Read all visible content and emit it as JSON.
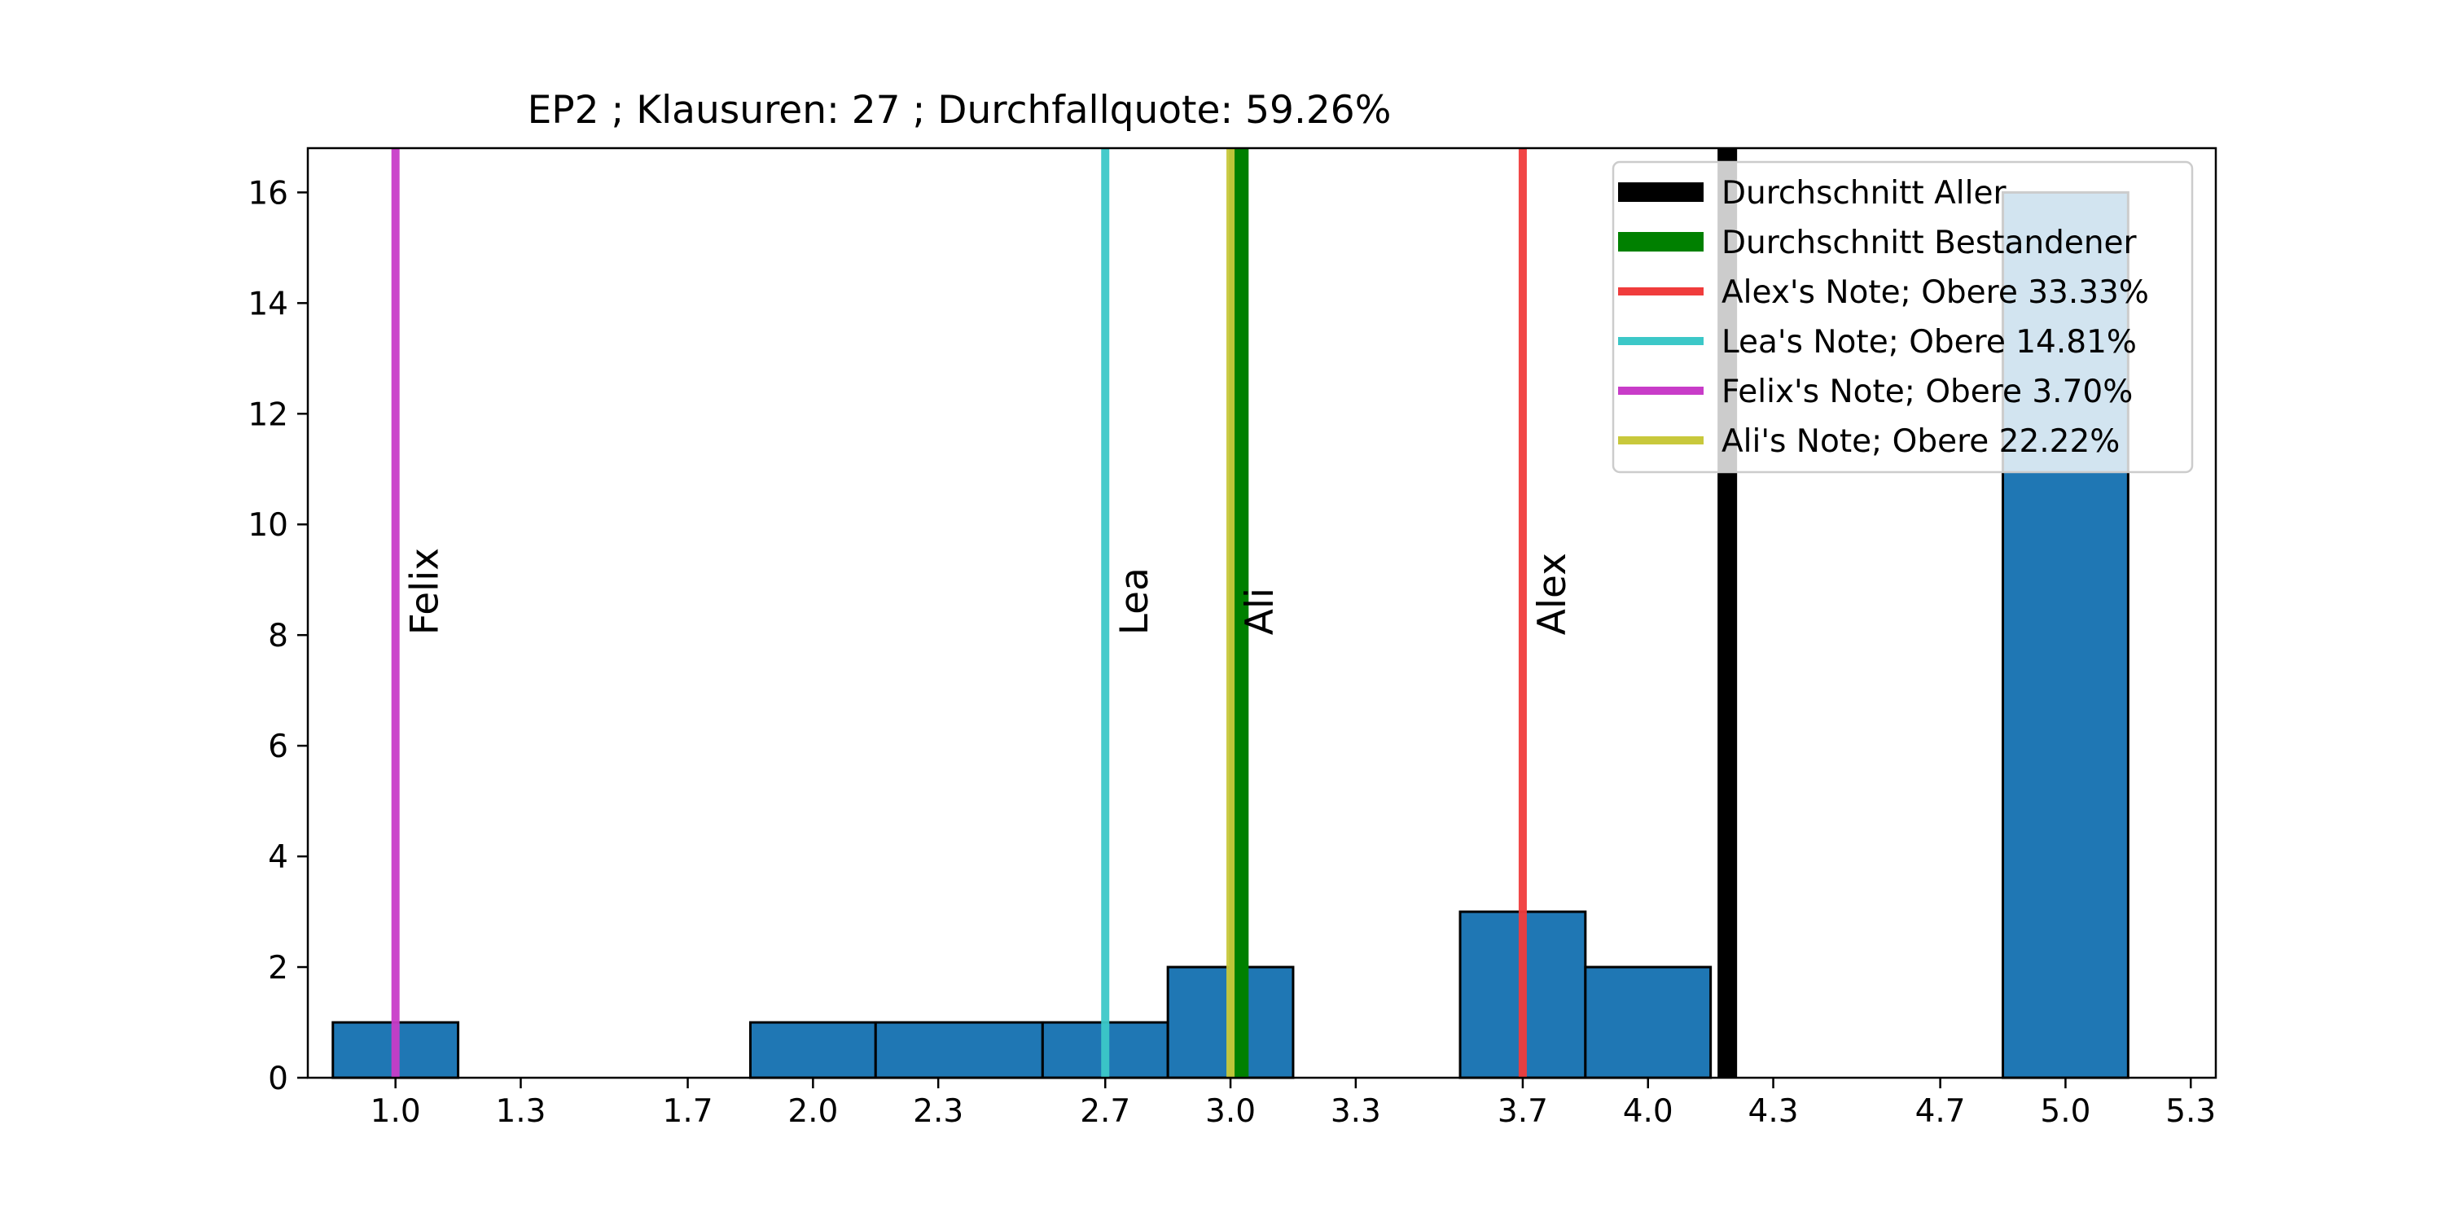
{
  "chart_data": {
    "type": "bar",
    "title": "EP2 ; Klausuren: 27 ; Durchfallquote: 59.26%",
    "xlabel": "",
    "ylabel": "",
    "xlim": [
      0.79,
      5.36
    ],
    "ylim": [
      0,
      16.8
    ],
    "xticks": [
      1.0,
      1.3,
      1.7,
      2.0,
      2.3,
      2.7,
      3.0,
      3.3,
      3.7,
      4.0,
      4.3,
      4.7,
      5.0,
      5.3
    ],
    "xtick_labels": [
      "1.0",
      "1.3",
      "1.7",
      "2.0",
      "2.3",
      "2.7",
      "3.0",
      "3.3",
      "3.7",
      "4.0",
      "4.3",
      "4.7",
      "5.0",
      "5.3"
    ],
    "yticks": [
      0,
      2,
      4,
      6,
      8,
      10,
      12,
      14,
      16
    ],
    "ytick_labels": [
      "0",
      "2",
      "4",
      "6",
      "8",
      "10",
      "12",
      "14",
      "16"
    ],
    "bars": [
      {
        "left": 0.85,
        "right": 1.15,
        "count": 1
      },
      {
        "left": 1.85,
        "right": 2.15,
        "count": 1
      },
      {
        "left": 2.15,
        "right": 2.55,
        "count": 1
      },
      {
        "left": 2.55,
        "right": 2.85,
        "count": 1
      },
      {
        "left": 2.85,
        "right": 3.15,
        "count": 2
      },
      {
        "left": 3.55,
        "right": 3.85,
        "count": 3
      },
      {
        "left": 3.85,
        "right": 4.15,
        "count": 2
      },
      {
        "left": 4.85,
        "right": 5.15,
        "count": 16
      }
    ],
    "bar_color": "#1f77b4",
    "vlines": [
      {
        "label": "Durchschnitt Aller",
        "x": 4.19,
        "color": "#000000",
        "weight": "thick"
      },
      {
        "label": "Durchschnitt Bestandener",
        "x": 3.02,
        "color": "#008000",
        "weight": "thick"
      },
      {
        "label": "Alex's Note; Obere 33.33%",
        "x": 3.7,
        "color": "#f03c3c",
        "weight": "normal",
        "name": "Alex"
      },
      {
        "label": "Lea's Note; Obere 14.81%",
        "x": 2.7,
        "color": "#3cc8c8",
        "weight": "normal",
        "name": "Lea"
      },
      {
        "label": "Felix's Note; Obere 3.70%",
        "x": 1.0,
        "color": "#c83cc8",
        "weight": "normal",
        "name": "Felix"
      },
      {
        "label": "Ali's Note; Obere 22.22%",
        "x": 3.0,
        "color": "#c8c83c",
        "weight": "normal",
        "name": "Ali"
      }
    ],
    "legend_position": "top-right",
    "grid": false
  }
}
